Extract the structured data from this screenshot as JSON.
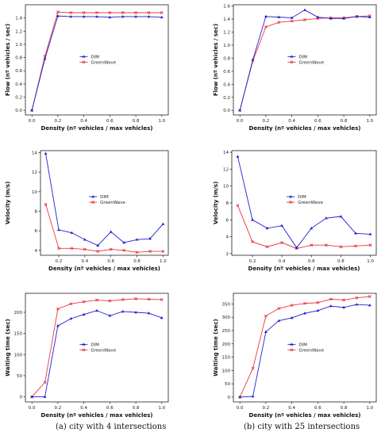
{
  "chart_data": [
    {
      "id": "flow-4",
      "type": "line",
      "xlabel": "Density (nº vehicles / max vehicles)",
      "ylabel": "Flow (nº vehicles / sec)",
      "xlim": [
        -0.05,
        1.05
      ],
      "ylim": [
        -0.07,
        1.6
      ],
      "xticks": [
        0.0,
        0.2,
        0.4,
        0.6,
        0.8,
        1.0
      ],
      "yticks": [
        0.0,
        0.2,
        0.4,
        0.6,
        0.8,
        1.0,
        1.2,
        1.4
      ],
      "legend": "center",
      "x": [
        0.0,
        0.1,
        0.2,
        0.3,
        0.4,
        0.5,
        0.6,
        0.7,
        0.8,
        0.9,
        1.0
      ],
      "series": [
        {
          "name": "DIM",
          "color": "#1f1fd1",
          "marker": "triangle",
          "values": [
            0.0,
            0.78,
            1.43,
            1.42,
            1.42,
            1.42,
            1.41,
            1.42,
            1.42,
            1.42,
            1.41
          ]
        },
        {
          "name": "GreenWave",
          "color": "#e8383d",
          "marker": "x",
          "values": [
            0.0,
            0.82,
            1.49,
            1.48,
            1.48,
            1.48,
            1.48,
            1.48,
            1.48,
            1.48,
            1.48
          ]
        }
      ]
    },
    {
      "id": "flow-25",
      "type": "line",
      "xlabel": "Density (nº vehicles / max vehicles)",
      "ylabel": "Flow (nº vehicles / sec)",
      "xlim": [
        -0.05,
        1.05
      ],
      "ylim": [
        -0.07,
        1.62
      ],
      "xticks": [
        0.0,
        0.2,
        0.4,
        0.6,
        0.8,
        1.0
      ],
      "yticks": [
        0.0,
        0.2,
        0.4,
        0.6,
        0.8,
        1.0,
        1.2,
        1.4,
        1.6
      ],
      "legend": "center",
      "x": [
        0.0,
        0.1,
        0.2,
        0.3,
        0.4,
        0.5,
        0.6,
        0.7,
        0.8,
        0.9,
        1.0
      ],
      "series": [
        {
          "name": "DIM",
          "color": "#1f1fd1",
          "marker": "triangle",
          "values": [
            0.0,
            0.78,
            1.44,
            1.43,
            1.42,
            1.54,
            1.43,
            1.41,
            1.41,
            1.44,
            1.43
          ]
        },
        {
          "name": "GreenWave",
          "color": "#e8383d",
          "marker": "x",
          "values": [
            0.0,
            0.76,
            1.28,
            1.35,
            1.37,
            1.39,
            1.41,
            1.42,
            1.42,
            1.44,
            1.45
          ]
        }
      ]
    },
    {
      "id": "velocity-4",
      "type": "line",
      "xlabel": "Density (nº vehicles / max vehicles)",
      "ylabel": "Velocity (m/s)",
      "xlim": [
        0.06,
        1.04
      ],
      "ylim": [
        3.5,
        14.2
      ],
      "xticks": [
        0.2,
        0.4,
        0.6,
        0.8,
        1.0
      ],
      "yticks": [
        4,
        6,
        8,
        10,
        12,
        14
      ],
      "legend": "upper-center",
      "x": [
        0.1,
        0.2,
        0.3,
        0.4,
        0.5,
        0.6,
        0.7,
        0.8,
        0.9,
        1.0
      ],
      "series": [
        {
          "name": "DIM",
          "color": "#1f1fd1",
          "marker": "triangle",
          "values": [
            13.9,
            6.1,
            5.8,
            5.1,
            4.5,
            5.9,
            4.8,
            5.1,
            5.2,
            6.7
          ]
        },
        {
          "name": "GreenWave",
          "color": "#e8383d",
          "marker": "x",
          "values": [
            8.7,
            4.2,
            4.2,
            4.1,
            3.9,
            4.1,
            4.0,
            3.8,
            3.9,
            3.9
          ]
        }
      ]
    },
    {
      "id": "velocity-25",
      "type": "line",
      "xlabel": "Density (nº vehicles / max vehicles)",
      "ylabel": "Velocity (m/s)",
      "xlim": [
        0.06,
        1.04
      ],
      "ylim": [
        1.8,
        14.2
      ],
      "xticks": [
        0.2,
        0.4,
        0.6,
        0.8,
        1.0
      ],
      "yticks": [
        2,
        4,
        6,
        8,
        10,
        12,
        14
      ],
      "legend": "upper-center",
      "x": [
        0.1,
        0.2,
        0.3,
        0.4,
        0.5,
        0.6,
        0.7,
        0.8,
        0.9,
        1.0
      ],
      "series": [
        {
          "name": "DIM",
          "color": "#1f1fd1",
          "marker": "triangle",
          "values": [
            13.5,
            6.0,
            5.0,
            5.3,
            2.7,
            5.0,
            6.2,
            6.4,
            4.4,
            4.3
          ]
        },
        {
          "name": "GreenWave",
          "color": "#e8383d",
          "marker": "x",
          "values": [
            7.7,
            3.4,
            2.8,
            3.3,
            2.6,
            3.0,
            3.0,
            2.8,
            2.9,
            3.0
          ]
        }
      ]
    },
    {
      "id": "waiting-4",
      "type": "line",
      "xlabel": "Density (nº vehicles / max vehicles)",
      "ylabel": "Waiting time (sec)",
      "xlim": [
        -0.05,
        1.05
      ],
      "ylim": [
        -12,
        245
      ],
      "xticks": [
        0.0,
        0.2,
        0.4,
        0.6,
        0.8,
        1.0
      ],
      "yticks": [
        0,
        50,
        100,
        150,
        200
      ],
      "legend": "center",
      "x": [
        0.0,
        0.1,
        0.2,
        0.3,
        0.4,
        0.5,
        0.6,
        0.7,
        0.8,
        0.9,
        1.0
      ],
      "series": [
        {
          "name": "DIM",
          "color": "#1f1fd1",
          "marker": "triangle",
          "values": [
            0,
            0,
            168,
            185,
            195,
            204,
            192,
            202,
            200,
            198,
            187
          ]
        },
        {
          "name": "GreenWave",
          "color": "#e8383d",
          "marker": "x",
          "values": [
            0,
            34,
            208,
            220,
            225,
            229,
            227,
            230,
            232,
            231,
            230
          ]
        }
      ]
    },
    {
      "id": "waiting-25",
      "type": "line",
      "xlabel": "Density (nº vehicles / max vehicles)",
      "ylabel": "Waiting time (sec)",
      "xlim": [
        -0.05,
        1.05
      ],
      "ylim": [
        -18,
        390
      ],
      "xticks": [
        0.0,
        0.2,
        0.4,
        0.6,
        0.8,
        1.0
      ],
      "yticks": [
        0,
        50,
        100,
        150,
        200,
        250,
        300,
        350
      ],
      "legend": "center",
      "x": [
        0.0,
        0.1,
        0.2,
        0.3,
        0.4,
        0.5,
        0.6,
        0.7,
        0.8,
        0.9,
        1.0
      ],
      "series": [
        {
          "name": "DIM",
          "color": "#1f1fd1",
          "marker": "triangle",
          "values": [
            0,
            3,
            245,
            287,
            298,
            315,
            325,
            342,
            337,
            348,
            345
          ]
        },
        {
          "name": "GreenWave",
          "color": "#e8383d",
          "marker": "x",
          "values": [
            0,
            108,
            305,
            333,
            345,
            352,
            355,
            368,
            365,
            373,
            378
          ]
        }
      ]
    }
  ],
  "captions": {
    "a": "(a) city with 4 intersections",
    "b": "(b) city with 25 intersections"
  }
}
